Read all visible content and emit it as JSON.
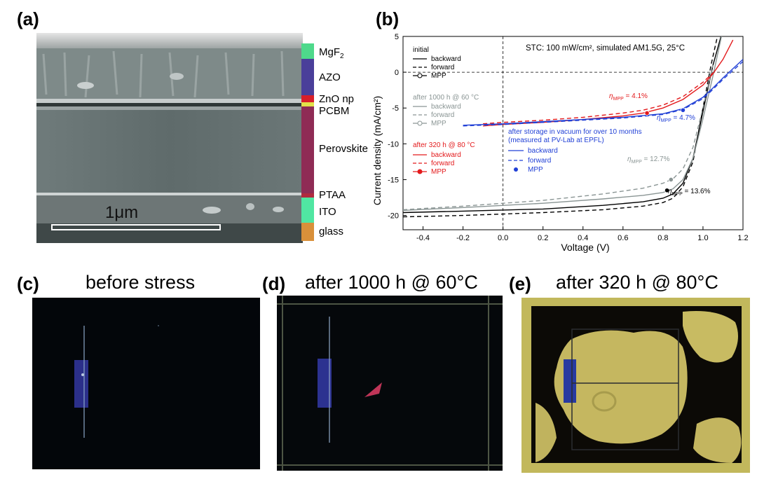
{
  "panel_a": {
    "label": "(a)",
    "scale_bar": "1μm",
    "layers": [
      {
        "name": "MgF",
        "sub": "2",
        "color": "#4ed98b"
      },
      {
        "name": "AZO",
        "sub": "",
        "color": "#4a3f9a"
      },
      {
        "name": "ZnO np",
        "sub": "",
        "color": "#d81f2a"
      },
      {
        "name": "PCBM",
        "sub": "",
        "color": "#e2e24a"
      },
      {
        "name": "Perovskite",
        "sub": "",
        "color": "#8f2b55"
      },
      {
        "name": "PTAA",
        "sub": "",
        "color": "#b02a3f"
      },
      {
        "name": "ITO",
        "sub": "",
        "color": "#50e6a2"
      },
      {
        "name": "glass",
        "sub": "",
        "color": "#d9903a"
      }
    ]
  },
  "panel_b": {
    "label": "(b)",
    "conditions_text": "STC: 100 mW/cm², simulated AM1.5G, 25°C",
    "legend": {
      "initial": {
        "title": "initial",
        "items": [
          "backward",
          "forward",
          "MPP"
        ]
      },
      "aged60": {
        "title": "after 1000 h @ 60 °C",
        "items": [
          "backward",
          "forward",
          "MPP"
        ]
      },
      "aged80": {
        "title": "after 320 h @ 80 °C",
        "items": [
          "backward",
          "forward",
          "MPP"
        ]
      },
      "vacuum": {
        "title_line1": "after storage in vacuum for over 10 months",
        "title_line2": "(measured at PV-Lab at EPFL)",
        "items": [
          "backward",
          "forward",
          "MPP"
        ]
      }
    },
    "annotations": {
      "eta_symbol": "η",
      "eta_sub": "MPP",
      "red": " = 4.1%",
      "blue": " = 4.7%",
      "gray": " = 12.7%",
      "black": " = 13.6%"
    }
  },
  "chart_data": {
    "type": "line",
    "title": "",
    "xlabel": "Voltage (V)",
    "ylabel": "Current density (mA/cm²)",
    "xlim": [
      -0.5,
      1.2
    ],
    "ylim": [
      -22,
      5
    ],
    "x_ticks": [
      -0.4,
      -0.2,
      0.0,
      0.2,
      0.4,
      0.6,
      0.8,
      1.0,
      1.2
    ],
    "x_tick_labels": [
      "-0.4",
      "-0.2",
      "0.0",
      "0.2",
      "0.4",
      "0.6",
      "0.8",
      "1.0",
      "1.2"
    ],
    "y_ticks": [
      5,
      0,
      -5,
      -10,
      -15,
      -20
    ],
    "y_tick_labels": [
      "5",
      "0",
      "-5",
      "-10",
      "-15",
      "-20"
    ],
    "colors": {
      "initial": "#000000",
      "aged60": "#8a9594",
      "aged80": "#e31a1c",
      "vacuum": "#2140d6"
    },
    "series": [
      {
        "name": "initial backward",
        "color": "#000000",
        "dash": "none",
        "x": [
          -0.5,
          -0.2,
          0.2,
          0.5,
          0.7,
          0.8,
          0.85,
          0.9,
          0.95,
          1.0,
          1.05,
          1.1
        ],
        "y": [
          -19.6,
          -19.4,
          -19.1,
          -18.6,
          -18.1,
          -17.6,
          -17.0,
          -15.5,
          -12.0,
          -5.5,
          1.0,
          6.0
        ]
      },
      {
        "name": "initial forward",
        "color": "#000000",
        "dash": "6,4",
        "x": [
          -0.5,
          -0.2,
          0.2,
          0.5,
          0.7,
          0.8,
          0.85,
          0.9,
          0.95,
          1.0,
          1.04,
          1.08
        ],
        "y": [
          -20.2,
          -20.0,
          -19.6,
          -19.2,
          -18.7,
          -18.2,
          -17.6,
          -16.0,
          -12.5,
          -5.0,
          1.0,
          6.0
        ]
      },
      {
        "name": "1000 h backward",
        "color": "#8a9594",
        "dash": "none",
        "x": [
          -0.5,
          -0.2,
          0.2,
          0.5,
          0.7,
          0.8,
          0.85,
          0.9,
          0.95,
          1.0,
          1.05,
          1.1
        ],
        "y": [
          -19.3,
          -18.9,
          -18.3,
          -17.7,
          -17.2,
          -16.8,
          -16.3,
          -15.0,
          -12.0,
          -6.5,
          -0.5,
          6.0
        ]
      },
      {
        "name": "1000 h forward",
        "color": "#8a9594",
        "dash": "6,4",
        "x": [
          -0.5,
          -0.2,
          0.2,
          0.5,
          0.7,
          0.8,
          0.85,
          0.9,
          0.95,
          1.0,
          1.05
        ],
        "y": [
          -19.2,
          -18.7,
          -17.9,
          -17.0,
          -16.2,
          -15.5,
          -14.9,
          -13.5,
          -10.5,
          -5.0,
          1.0
        ]
      },
      {
        "name": "320 h backward",
        "color": "#e31a1c",
        "dash": "none",
        "x": [
          -0.1,
          0.0,
          0.2,
          0.4,
          0.6,
          0.7,
          0.8,
          0.9,
          1.0,
          1.05,
          1.1,
          1.15
        ],
        "y": [
          -7.5,
          -7.3,
          -7.0,
          -6.6,
          -6.1,
          -5.7,
          -5.0,
          -3.8,
          -1.8,
          -0.2,
          1.8,
          4.5
        ]
      },
      {
        "name": "320 h forward",
        "color": "#e31a1c",
        "dash": "6,4",
        "x": [
          -0.1,
          0.0,
          0.2,
          0.4,
          0.6,
          0.7,
          0.8,
          0.9,
          1.0,
          1.05
        ],
        "y": [
          -7.2,
          -7.0,
          -6.7,
          -6.3,
          -5.7,
          -5.3,
          -4.6,
          -3.4,
          -1.4,
          -0.1
        ]
      },
      {
        "name": "vacuum backward",
        "color": "#2140d6",
        "dash": "none",
        "x": [
          -0.2,
          0.0,
          0.2,
          0.4,
          0.6,
          0.8,
          0.9,
          1.0,
          1.05,
          1.1,
          1.2
        ],
        "y": [
          -7.4,
          -7.2,
          -6.9,
          -6.6,
          -6.3,
          -5.8,
          -5.1,
          -3.5,
          -2.2,
          -0.8,
          1.8
        ]
      },
      {
        "name": "vacuum forward",
        "color": "#2140d6",
        "dash": "6,4",
        "x": [
          -0.2,
          0.0,
          0.2,
          0.4,
          0.6,
          0.8,
          0.9,
          1.0,
          1.05,
          1.1,
          1.2
        ],
        "y": [
          -7.5,
          -7.3,
          -7.0,
          -6.7,
          -6.4,
          -5.9,
          -5.2,
          -3.7,
          -2.4,
          -1.0,
          1.5
        ]
      }
    ],
    "mpp_points": [
      {
        "name": "initial MPP",
        "x": 0.82,
        "y": -16.5,
        "color": "#000000"
      },
      {
        "name": "1000 h MPP",
        "x": 0.84,
        "y": -15.0,
        "color": "#8a9594"
      },
      {
        "name": "320 h MPP",
        "x": 0.72,
        "y": -5.7,
        "color": "#e31a1c"
      },
      {
        "name": "vacuum MPP",
        "x": 0.9,
        "y": -5.3,
        "color": "#2140d6"
      }
    ],
    "reference_lines": {
      "y": 0,
      "x": 0
    }
  },
  "panel_c": {
    "label": "(c)",
    "title": "before stress"
  },
  "panel_d": {
    "label": "(d)",
    "title": "after 1000 h @ 60°C"
  },
  "panel_e": {
    "label": "(e)",
    "title": "after 320 h @ 80°C"
  }
}
